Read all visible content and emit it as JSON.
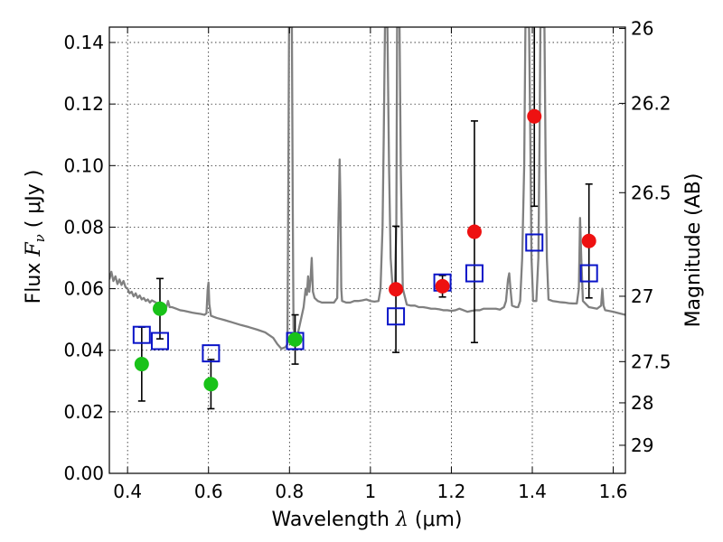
{
  "chart_data": {
    "type": "scatter",
    "xlabel": {
      "prefix": "Wavelength  ",
      "symbol": "λ",
      "unit": " (μm)"
    },
    "ylabel": {
      "prefix": "Flux  ",
      "symbol": "F",
      "sub": "ν",
      "unit": "  ( μJy )"
    },
    "y2label": "Magnitude (AB)",
    "xlim": [
      0.355,
      1.63
    ],
    "ylim": [
      0.0,
      0.145
    ],
    "grid": true,
    "x_ticks": [
      {
        "value": 0.4,
        "label": "0.4"
      },
      {
        "value": 0.6,
        "label": "0.6"
      },
      {
        "value": 0.8,
        "label": "0.8"
      },
      {
        "value": 1.0,
        "label": "1"
      },
      {
        "value": 1.2,
        "label": "1.2"
      },
      {
        "value": 1.4,
        "label": "1.4"
      },
      {
        "value": 1.6,
        "label": "1.6"
      }
    ],
    "y_ticks": [
      {
        "value": 0.0,
        "label": "0.00"
      },
      {
        "value": 0.02,
        "label": "0.02"
      },
      {
        "value": 0.04,
        "label": "0.04"
      },
      {
        "value": 0.06,
        "label": "0.06"
      },
      {
        "value": 0.08,
        "label": "0.08"
      },
      {
        "value": 0.1,
        "label": "0.10"
      },
      {
        "value": 0.12,
        "label": "0.12"
      },
      {
        "value": 0.14,
        "label": "0.14"
      }
    ],
    "mag_ticks": [
      {
        "value": 26.0,
        "label": "26"
      },
      {
        "value": 26.2,
        "label": "26.2"
      },
      {
        "value": 26.5,
        "label": "26.5"
      },
      {
        "value": 27.0,
        "label": "27"
      },
      {
        "value": 27.5,
        "label": "27.5"
      },
      {
        "value": 28.0,
        "label": "28"
      },
      {
        "value": 29.0,
        "label": "29"
      }
    ],
    "colors": {
      "optical": "#19c219",
      "infrared": "#ee1111",
      "model": "#0a14c8",
      "spectrum": "#808080",
      "errorbar": "#000000"
    },
    "observed_points": [
      {
        "x": 0.435,
        "y": 0.0355,
        "err": 0.012,
        "band": "optical"
      },
      {
        "x": 0.48,
        "y": 0.0535,
        "err": 0.0098,
        "band": "optical"
      },
      {
        "x": 0.606,
        "y": 0.029,
        "err": 0.008,
        "band": "optical"
      },
      {
        "x": 0.814,
        "y": 0.0435,
        "err": 0.008,
        "band": "optical"
      },
      {
        "x": 1.063,
        "y": 0.0598,
        "err": 0.0205,
        "band": "infrared"
      },
      {
        "x": 1.178,
        "y": 0.0608,
        "err": 0.0035,
        "band": "infrared"
      },
      {
        "x": 1.257,
        "y": 0.0785,
        "err": 0.036,
        "band": "infrared"
      },
      {
        "x": 1.405,
        "y": 0.116,
        "err": 0.0292,
        "band": "infrared"
      },
      {
        "x": 1.54,
        "y": 0.0755,
        "err": 0.0185,
        "band": "infrared"
      }
    ],
    "model_points": [
      {
        "x": 0.435,
        "y": 0.045
      },
      {
        "x": 0.48,
        "y": 0.043
      },
      {
        "x": 0.606,
        "y": 0.039
      },
      {
        "x": 0.814,
        "y": 0.043
      },
      {
        "x": 1.063,
        "y": 0.051
      },
      {
        "x": 1.178,
        "y": 0.062
      },
      {
        "x": 1.257,
        "y": 0.065
      },
      {
        "x": 1.405,
        "y": 0.075
      },
      {
        "x": 1.54,
        "y": 0.065
      }
    ],
    "spectrum": [
      [
        0.355,
        0.063
      ],
      [
        0.36,
        0.0655
      ],
      [
        0.365,
        0.0625
      ],
      [
        0.37,
        0.064
      ],
      [
        0.375,
        0.0615
      ],
      [
        0.38,
        0.063
      ],
      [
        0.385,
        0.0612
      ],
      [
        0.39,
        0.0625
      ],
      [
        0.395,
        0.0605
      ],
      [
        0.4,
        0.06
      ],
      [
        0.405,
        0.0585
      ],
      [
        0.41,
        0.059
      ],
      [
        0.415,
        0.0575
      ],
      [
        0.42,
        0.0585
      ],
      [
        0.425,
        0.057
      ],
      [
        0.43,
        0.0578
      ],
      [
        0.435,
        0.0565
      ],
      [
        0.44,
        0.057
      ],
      [
        0.445,
        0.056
      ],
      [
        0.45,
        0.0565
      ],
      [
        0.455,
        0.0555
      ],
      [
        0.46,
        0.0562
      ],
      [
        0.47,
        0.0555
      ],
      [
        0.48,
        0.0548
      ],
      [
        0.49,
        0.0545
      ],
      [
        0.496,
        0.054
      ],
      [
        0.5,
        0.056
      ],
      [
        0.504,
        0.054
      ],
      [
        0.51,
        0.054
      ],
      [
        0.52,
        0.0535
      ],
      [
        0.53,
        0.053
      ],
      [
        0.54,
        0.0528
      ],
      [
        0.55,
        0.0525
      ],
      [
        0.56,
        0.0522
      ],
      [
        0.57,
        0.052
      ],
      [
        0.58,
        0.0518
      ],
      [
        0.59,
        0.0515
      ],
      [
        0.595,
        0.052
      ],
      [
        0.598,
        0.06
      ],
      [
        0.6,
        0.062
      ],
      [
        0.602,
        0.055
      ],
      [
        0.606,
        0.0512
      ],
      [
        0.62,
        0.0505
      ],
      [
        0.64,
        0.0498
      ],
      [
        0.66,
        0.049
      ],
      [
        0.68,
        0.0482
      ],
      [
        0.7,
        0.0475
      ],
      [
        0.72,
        0.0467
      ],
      [
        0.74,
        0.0458
      ],
      [
        0.76,
        0.044
      ],
      [
        0.77,
        0.042
      ],
      [
        0.78,
        0.0405
      ],
      [
        0.79,
        0.041
      ],
      [
        0.795,
        0.042
      ],
      [
        0.797,
        0.09
      ],
      [
        0.799,
        0.145
      ],
      [
        0.801,
        0.145
      ],
      [
        0.804,
        0.145
      ],
      [
        0.806,
        0.145
      ],
      [
        0.808,
        0.09
      ],
      [
        0.81,
        0.047
      ],
      [
        0.815,
        0.044
      ],
      [
        0.82,
        0.045
      ],
      [
        0.825,
        0.048
      ],
      [
        0.83,
        0.051
      ],
      [
        0.835,
        0.054
      ],
      [
        0.84,
        0.06
      ],
      [
        0.843,
        0.058
      ],
      [
        0.846,
        0.064
      ],
      [
        0.849,
        0.059
      ],
      [
        0.852,
        0.063
      ],
      [
        0.855,
        0.07
      ],
      [
        0.858,
        0.059
      ],
      [
        0.862,
        0.057
      ],
      [
        0.87,
        0.056
      ],
      [
        0.88,
        0.0555
      ],
      [
        0.89,
        0.0555
      ],
      [
        0.9,
        0.0555
      ],
      [
        0.91,
        0.0555
      ],
      [
        0.918,
        0.057
      ],
      [
        0.92,
        0.075
      ],
      [
        0.922,
        0.088
      ],
      [
        0.924,
        0.102
      ],
      [
        0.926,
        0.088
      ],
      [
        0.928,
        0.06
      ],
      [
        0.93,
        0.056
      ],
      [
        0.94,
        0.0555
      ],
      [
        0.95,
        0.0555
      ],
      [
        0.96,
        0.056
      ],
      [
        0.97,
        0.056
      ],
      [
        0.98,
        0.0562
      ],
      [
        0.99,
        0.0565
      ],
      [
        1.0,
        0.056
      ],
      [
        1.01,
        0.0558
      ],
      [
        1.02,
        0.056
      ],
      [
        1.025,
        0.06
      ],
      [
        1.03,
        0.08
      ],
      [
        1.033,
        0.11
      ],
      [
        1.036,
        0.145
      ],
      [
        1.042,
        0.145
      ],
      [
        1.046,
        0.1
      ],
      [
        1.05,
        0.07
      ],
      [
        1.055,
        0.06
      ],
      [
        1.06,
        0.058
      ],
      [
        1.064,
        0.08
      ],
      [
        1.066,
        0.145
      ],
      [
        1.072,
        0.145
      ],
      [
        1.075,
        0.1
      ],
      [
        1.08,
        0.06
      ],
      [
        1.09,
        0.0548
      ],
      [
        1.1,
        0.0545
      ],
      [
        1.11,
        0.0545
      ],
      [
        1.12,
        0.054
      ],
      [
        1.13,
        0.054
      ],
      [
        1.14,
        0.0538
      ],
      [
        1.15,
        0.0535
      ],
      [
        1.16,
        0.0535
      ],
      [
        1.17,
        0.0533
      ],
      [
        1.18,
        0.053
      ],
      [
        1.19,
        0.053
      ],
      [
        1.2,
        0.0528
      ],
      [
        1.21,
        0.053
      ],
      [
        1.22,
        0.0535
      ],
      [
        1.23,
        0.053
      ],
      [
        1.24,
        0.0525
      ],
      [
        1.25,
        0.0528
      ],
      [
        1.26,
        0.053
      ],
      [
        1.27,
        0.053
      ],
      [
        1.28,
        0.0535
      ],
      [
        1.29,
        0.0535
      ],
      [
        1.3,
        0.0535
      ],
      [
        1.31,
        0.0535
      ],
      [
        1.32,
        0.0532
      ],
      [
        1.33,
        0.054
      ],
      [
        1.335,
        0.056
      ],
      [
        1.34,
        0.063
      ],
      [
        1.343,
        0.065
      ],
      [
        1.346,
        0.06
      ],
      [
        1.35,
        0.0545
      ],
      [
        1.36,
        0.054
      ],
      [
        1.365,
        0.054
      ],
      [
        1.37,
        0.056
      ],
      [
        1.375,
        0.07
      ],
      [
        1.38,
        0.1
      ],
      [
        1.383,
        0.145
      ],
      [
        1.392,
        0.145
      ],
      [
        1.395,
        0.11
      ],
      [
        1.398,
        0.07
      ],
      [
        1.402,
        0.056
      ],
      [
        1.41,
        0.056
      ],
      [
        1.415,
        0.07
      ],
      [
        1.418,
        0.11
      ],
      [
        1.42,
        0.145
      ],
      [
        1.43,
        0.145
      ],
      [
        1.433,
        0.1
      ],
      [
        1.436,
        0.07
      ],
      [
        1.44,
        0.0565
      ],
      [
        1.45,
        0.056
      ],
      [
        1.46,
        0.0558
      ],
      [
        1.47,
        0.0556
      ],
      [
        1.48,
        0.0555
      ],
      [
        1.49,
        0.0553
      ],
      [
        1.5,
        0.0552
      ],
      [
        1.51,
        0.0552
      ],
      [
        1.515,
        0.06
      ],
      [
        1.518,
        0.083
      ],
      [
        1.521,
        0.07
      ],
      [
        1.525,
        0.056
      ],
      [
        1.54,
        0.054
      ],
      [
        1.56,
        0.0535
      ],
      [
        1.57,
        0.0545
      ],
      [
        1.573,
        0.06
      ],
      [
        1.576,
        0.0545
      ],
      [
        1.58,
        0.053
      ],
      [
        1.6,
        0.0525
      ],
      [
        1.615,
        0.052
      ],
      [
        1.63,
        0.0515
      ]
    ]
  }
}
